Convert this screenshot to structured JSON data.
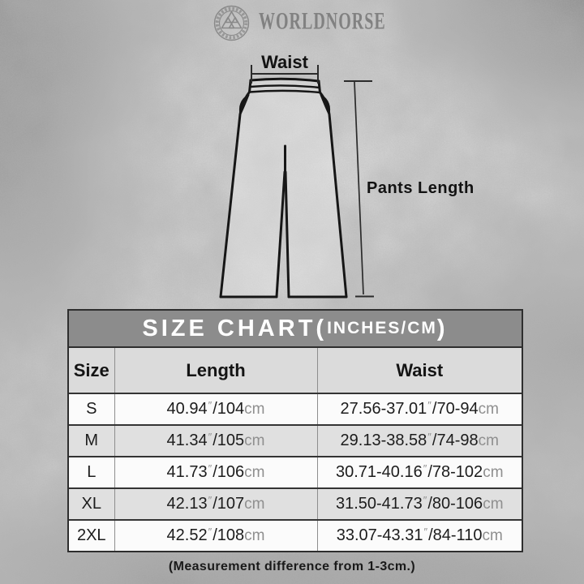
{
  "brand": {
    "name": "WORLDNORSE",
    "logo_icon": "valknut-circle"
  },
  "diagram": {
    "waist_label": "Waist",
    "length_label": "Pants Length"
  },
  "table": {
    "title_main": "SIZE CHART(",
    "title_unit": "INCHES/CM",
    "title_close": ")",
    "headers": [
      "Size",
      "Length",
      "Waist"
    ],
    "inch_mark": "″",
    "cm_suffix": "cm",
    "rows": [
      {
        "size": "S",
        "length_in": "40.94",
        "length_cm": "/104",
        "waist_in": "27.56-37.01",
        "waist_cm": "/70-94"
      },
      {
        "size": "M",
        "length_in": "41.34",
        "length_cm": "/105",
        "waist_in": "29.13-38.58",
        "waist_cm": "/74-98"
      },
      {
        "size": "L",
        "length_in": "41.73",
        "length_cm": "/106",
        "waist_in": "30.71-40.16",
        "waist_cm": "/78-102"
      },
      {
        "size": "XL",
        "length_in": "42.13",
        "length_cm": "/107",
        "waist_in": "31.50-41.73",
        "waist_cm": "/80-106"
      },
      {
        "size": "2XL",
        "length_in": "42.52",
        "length_cm": "/108",
        "waist_in": "33.07-43.31",
        "waist_cm": "/84-110"
      }
    ]
  },
  "footnote": "(Measurement difference from 1-3cm.)",
  "colors": {
    "title_bar": "#8c8c8c",
    "header_row": "#dbdbdb",
    "row_light": "#fbfbfb",
    "row_alt": "#e0e0e0",
    "unit_text": "#8f8f8f",
    "outline": "#161616",
    "brand_gray": "#818181"
  }
}
